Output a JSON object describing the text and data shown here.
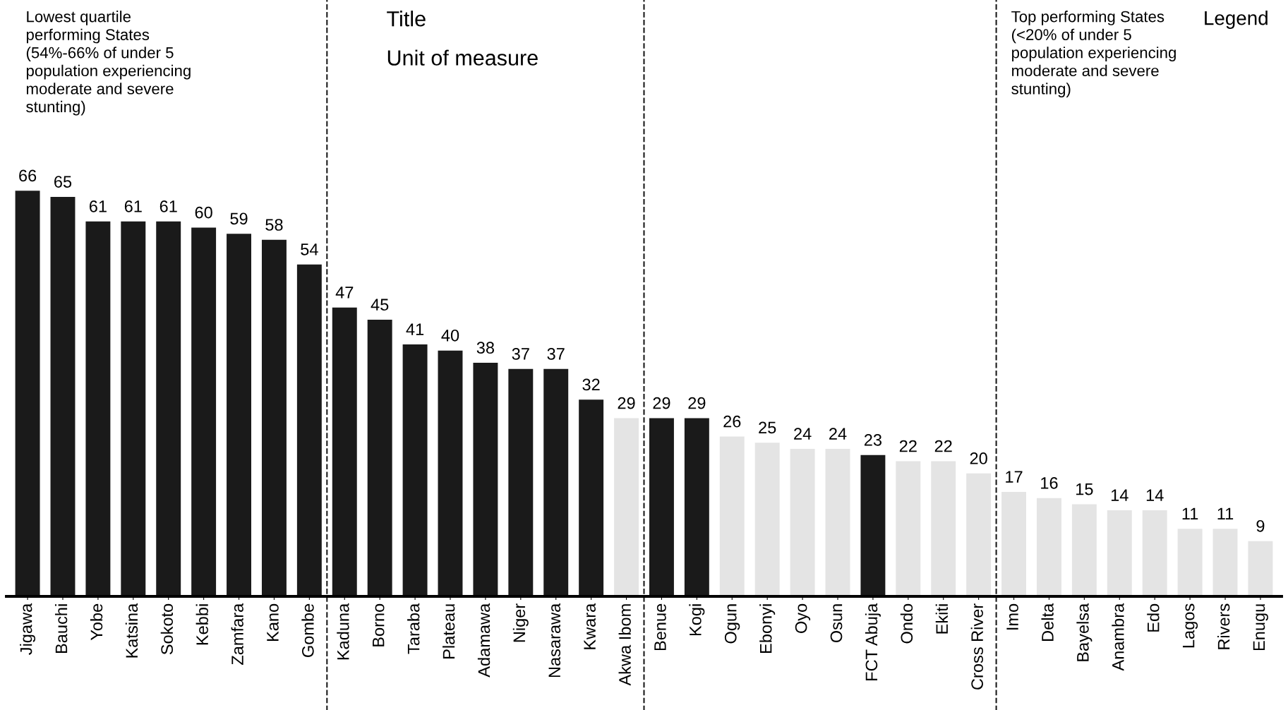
{
  "chart_data": {
    "type": "bar",
    "categories": [
      "Jigawa",
      "Bauchi",
      "Yobe",
      "Katsina",
      "Sokoto",
      "Kebbi",
      "Zamfara",
      "Kano",
      "Gombe",
      "Kaduna",
      "Borno",
      "Taraba",
      "Plateau",
      "Adamawa",
      "Niger",
      "Nasarawa",
      "Kwara",
      "Akwa Ibom",
      "Benue",
      "Kogi",
      "Ogun",
      "Ebonyi",
      "Oyo",
      "Osun",
      "FCT Abuja",
      "Ondo",
      "Ekiti",
      "Cross River",
      "Imo",
      "Delta",
      "Bayelsa",
      "Anambra",
      "Edo",
      "Lagos",
      "Rivers",
      "Enugu"
    ],
    "values": [
      66,
      65,
      61,
      61,
      61,
      60,
      59,
      58,
      54,
      47,
      45,
      41,
      40,
      38,
      37,
      37,
      32,
      29,
      29,
      29,
      26,
      25,
      24,
      24,
      23,
      22,
      22,
      20,
      17,
      16,
      15,
      14,
      14,
      11,
      11,
      9
    ],
    "colors": [
      "#1a1a1a",
      "#1a1a1a",
      "#1a1a1a",
      "#1a1a1a",
      "#1a1a1a",
      "#1a1a1a",
      "#1a1a1a",
      "#1a1a1a",
      "#1a1a1a",
      "#1a1a1a",
      "#1a1a1a",
      "#1a1a1a",
      "#1a1a1a",
      "#1a1a1a",
      "#1a1a1a",
      "#1a1a1a",
      "#1a1a1a",
      "#e4e4e4",
      "#1a1a1a",
      "#1a1a1a",
      "#e4e4e4",
      "#e4e4e4",
      "#e4e4e4",
      "#e4e4e4",
      "#1a1a1a",
      "#e4e4e4",
      "#e4e4e4",
      "#e4e4e4",
      "#e4e4e4",
      "#e4e4e4",
      "#e4e4e4",
      "#e4e4e4",
      "#e4e4e4",
      "#e4e4e4",
      "#e4e4e4",
      "#e4e4e4"
    ],
    "data_labels": true,
    "grid": false,
    "tick_labels": "x",
    "annotations": [
      "Lowest quartile performing States (54%-66% of under 5 population experiencing moderate and severe stunting)",
      "Title",
      "Unit of measure",
      "Top performing States (<20% of under 5 population experiencing moderate and severe stunting)",
      "Legend"
    ]
  }
}
